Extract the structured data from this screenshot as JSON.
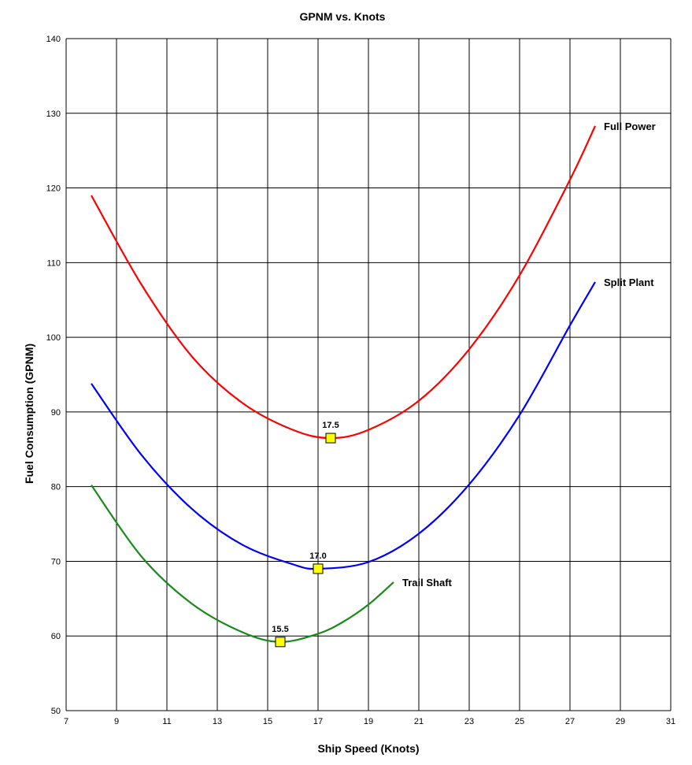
{
  "chart_data": {
    "type": "line",
    "title": "GPNM vs. Knots",
    "xlabel": "Ship Speed (Knots)",
    "ylabel": "Fuel Consumption (GPNM)",
    "xlim": [
      7,
      31
    ],
    "ylim": [
      50,
      140
    ],
    "xticks": [
      7,
      9,
      11,
      13,
      15,
      17,
      19,
      21,
      23,
      25,
      27,
      29,
      31
    ],
    "yticks": [
      50,
      60,
      70,
      80,
      90,
      100,
      110,
      120,
      130,
      140
    ],
    "grid": true,
    "legend": "none (series labelled at line ends)",
    "series": [
      {
        "name": "Full Power",
        "color": "#ff0000",
        "x": [
          8,
          10,
          12,
          14,
          16,
          17.5,
          19,
          21,
          23,
          25,
          27,
          28
        ],
        "y": [
          119,
          107,
          97.4,
          91.2,
          87.6,
          86.5,
          87.6,
          91.5,
          98.4,
          108.3,
          121.1,
          128.3
        ],
        "minimum": {
          "x": 17.5,
          "y": 86.5,
          "label": "17.5"
        }
      },
      {
        "name": "Split Plant",
        "color": "#0000ff",
        "x": [
          8,
          10,
          12,
          14,
          16,
          17,
          19,
          21,
          23,
          25,
          27,
          28
        ],
        "y": [
          93.8,
          84.2,
          77.0,
          72.2,
          69.6,
          69.0,
          69.9,
          73.7,
          80.3,
          89.6,
          101.6,
          107.4
        ],
        "minimum": {
          "x": 17.0,
          "y": 69.0,
          "label": "17.0"
        }
      },
      {
        "name": "Trail Shaft",
        "color": "#1a8a1a",
        "x": [
          8,
          10,
          12,
          14,
          15.5,
          17,
          18,
          19,
          20
        ],
        "y": [
          80.2,
          70.6,
          64.3,
          60.5,
          59.2,
          60.3,
          61.9,
          64.2,
          67.2
        ],
        "minimum": {
          "x": 15.5,
          "y": 59.2,
          "label": "15.5"
        }
      }
    ]
  }
}
